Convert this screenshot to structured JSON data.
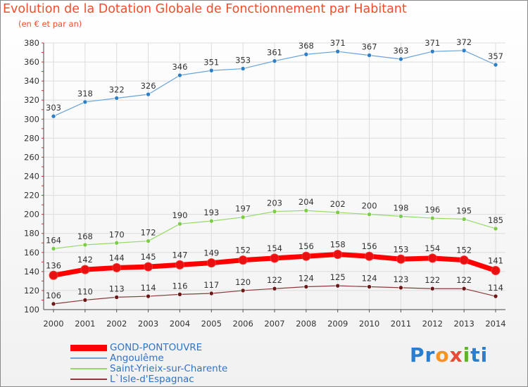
{
  "title": "Evolution de la Dotation Globale de Fonctionnement par Habitant",
  "subtitle": "(en € et par an)",
  "logo": {
    "text": "Proxiti",
    "letters": [
      "P",
      "r",
      "o",
      "x",
      "i",
      "t",
      "i"
    ],
    "colors": [
      "#2a7dcf",
      "#2a7dcf",
      "#f7931e",
      "#e84b37",
      "#5db42e",
      "#2a7dcf",
      "#2a7dcf"
    ]
  },
  "chart_data": {
    "type": "line",
    "title": "Evolution de la Dotation Globale de Fonctionnement par Habitant",
    "subtitle": "(en € et par an)",
    "xlabel": "",
    "ylabel": "",
    "ylim": [
      100,
      380
    ],
    "ytick_step": 20,
    "grid": true,
    "x": [
      2000,
      2001,
      2002,
      2003,
      2004,
      2005,
      2006,
      2007,
      2008,
      2009,
      2010,
      2011,
      2012,
      2013,
      2014
    ],
    "series": [
      {
        "name": "GOND-PONTOUVRE",
        "color": "#ff0000",
        "point_color": "#e81010",
        "width": 7,
        "marker": 6,
        "values": [
          136,
          142,
          144,
          145,
          147,
          149,
          152,
          154,
          156,
          158,
          156,
          153,
          154,
          152,
          141
        ]
      },
      {
        "name": "Angoulême",
        "color": "#6aa3d8",
        "point_color": "#2f7fc6",
        "width": 1.2,
        "marker": 3,
        "values": [
          303,
          318,
          322,
          326,
          346,
          351,
          353,
          361,
          368,
          371,
          367,
          363,
          371,
          372,
          357
        ]
      },
      {
        "name": "Saint-Yrieix-sur-Charente",
        "color": "#96d96a",
        "point_color": "#7ccb4a",
        "width": 1.2,
        "marker": 3,
        "values": [
          164,
          168,
          170,
          172,
          190,
          193,
          197,
          203,
          204,
          202,
          200,
          198,
          196,
          195,
          185
        ]
      },
      {
        "name": "L`Isle-d'Espagnac",
        "color": "#8a3a3a",
        "point_color": "#6a1818",
        "width": 1.2,
        "marker": 3,
        "values": [
          106,
          110,
          113,
          114,
          116,
          117,
          120,
          122,
          124,
          125,
          124,
          123,
          122,
          122,
          114
        ]
      }
    ]
  }
}
